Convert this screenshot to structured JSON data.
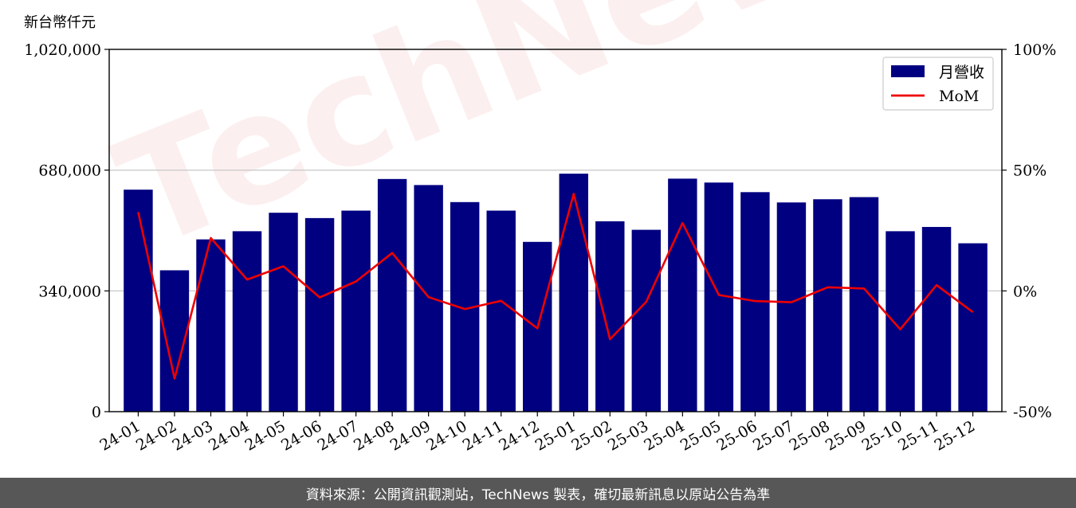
{
  "unit_label": "新台幣仟元",
  "footer_text": "資料來源：公開資訊觀測站，TechNews 製表，確切最新訊息以原站公告為準",
  "watermark_text": "TechNews",
  "chart_data": {
    "type": "bar+line",
    "categories": [
      "24-01",
      "24-02",
      "24-03",
      "24-04",
      "24-05",
      "24-06",
      "24-07",
      "24-08",
      "24-09",
      "24-10",
      "24-11",
      "24-12",
      "25-01",
      "25-02",
      "25-03",
      "25-04",
      "25-05",
      "25-06",
      "25-07",
      "25-08",
      "25-09",
      "25-10",
      "25-11",
      "25-12"
    ],
    "series": [
      {
        "name": "月營收",
        "type": "bar",
        "axis": "left",
        "color": "#000080",
        "values": [
          625000,
          398000,
          485000,
          508000,
          560000,
          545000,
          566000,
          655000,
          638000,
          590000,
          566000,
          478000,
          670000,
          536000,
          512000,
          656000,
          645000,
          618000,
          589000,
          598000,
          604000,
          508000,
          520000,
          474000
        ]
      },
      {
        "name": "MoM",
        "type": "line",
        "axis": "right",
        "color": "#ee0000",
        "values": [
          32.6,
          -36.3,
          21.9,
          4.7,
          10.2,
          -2.7,
          3.9,
          15.7,
          -2.6,
          -7.5,
          -4.1,
          -15.5,
          40.2,
          -20.0,
          -4.5,
          28.1,
          -1.7,
          -4.2,
          -4.7,
          1.5,
          1.0,
          -15.9,
          2.4,
          -8.8
        ]
      }
    ],
    "ylim": [
      0,
      1020000
    ],
    "yticks": [
      0,
      340000,
      680000,
      1020000
    ],
    "ytick_labels": [
      "0",
      "340,000",
      "680,000",
      "1,020,000"
    ],
    "y2lim": [
      -50,
      100
    ],
    "y2ticks": [
      -50,
      0,
      50,
      100
    ],
    "y2tick_labels": [
      "-50%",
      "0%",
      "50%",
      "100%"
    ],
    "grid": "horizontal",
    "legend_position": "top-right"
  }
}
